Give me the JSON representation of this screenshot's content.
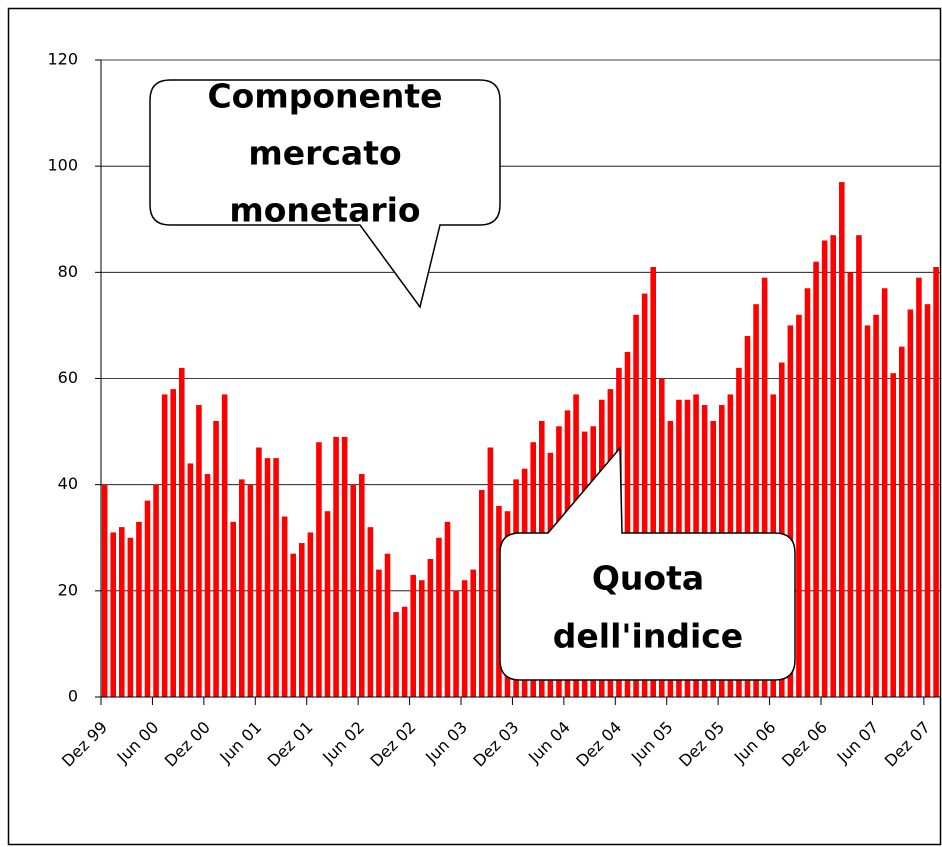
{
  "chart_data": {
    "type": "bar",
    "categories": [
      "Dez 99",
      null,
      null,
      null,
      null,
      null,
      "Jun 00",
      null,
      null,
      null,
      null,
      null,
      "Dez 00",
      null,
      null,
      null,
      null,
      null,
      "Jun 01",
      null,
      null,
      null,
      null,
      null,
      "Dez 01",
      null,
      null,
      null,
      null,
      null,
      "Jun 02",
      null,
      null,
      null,
      null,
      null,
      "Dez 02",
      null,
      null,
      null,
      null,
      null,
      "Jun 03",
      null,
      null,
      null,
      null,
      null,
      "Dez 03",
      null,
      null,
      null,
      null,
      null,
      "Jun 04",
      null,
      null,
      null,
      null,
      null,
      "Dez 04",
      null,
      null,
      null,
      null,
      null,
      "Jun 05",
      null,
      null,
      null,
      null,
      null,
      "Dez 05",
      null,
      null,
      null,
      null,
      null,
      "Jun 06",
      null,
      null,
      null,
      null,
      null,
      "Dez 06",
      null,
      null,
      null,
      null,
      null,
      "Jun 07",
      null,
      null,
      null,
      null,
      null,
      "Dez 07",
      null
    ],
    "values": [
      40,
      31,
      32,
      30,
      33,
      37,
      40,
      57,
      58,
      62,
      44,
      55,
      42,
      52,
      57,
      33,
      41,
      40,
      47,
      45,
      45,
      34,
      27,
      29,
      31,
      48,
      35,
      49,
      49,
      40,
      42,
      32,
      24,
      27,
      16,
      17,
      23,
      22,
      26,
      30,
      33,
      20,
      22,
      24,
      39,
      47,
      36,
      35,
      41,
      43,
      48,
      52,
      46,
      51,
      54,
      57,
      50,
      51,
      56,
      58,
      62,
      65,
      72,
      76,
      81,
      60,
      52,
      56,
      56,
      57,
      55,
      52,
      55,
      57,
      62,
      68,
      74,
      79,
      57,
      63,
      70,
      72,
      77,
      82,
      86,
      87,
      97,
      80,
      87,
      70,
      72,
      77,
      61,
      66,
      73,
      79,
      74,
      81
    ],
    "color": "#ff0000",
    "ylim": [
      0,
      120
    ],
    "yticks": [
      0,
      20,
      40,
      60,
      80,
      100,
      120
    ],
    "grid": true,
    "annotations": [
      {
        "lines": [
          "Componente",
          "mercato",
          "monetario"
        ]
      },
      {
        "lines": [
          "Quota",
          "dell'indice"
        ]
      }
    ]
  }
}
